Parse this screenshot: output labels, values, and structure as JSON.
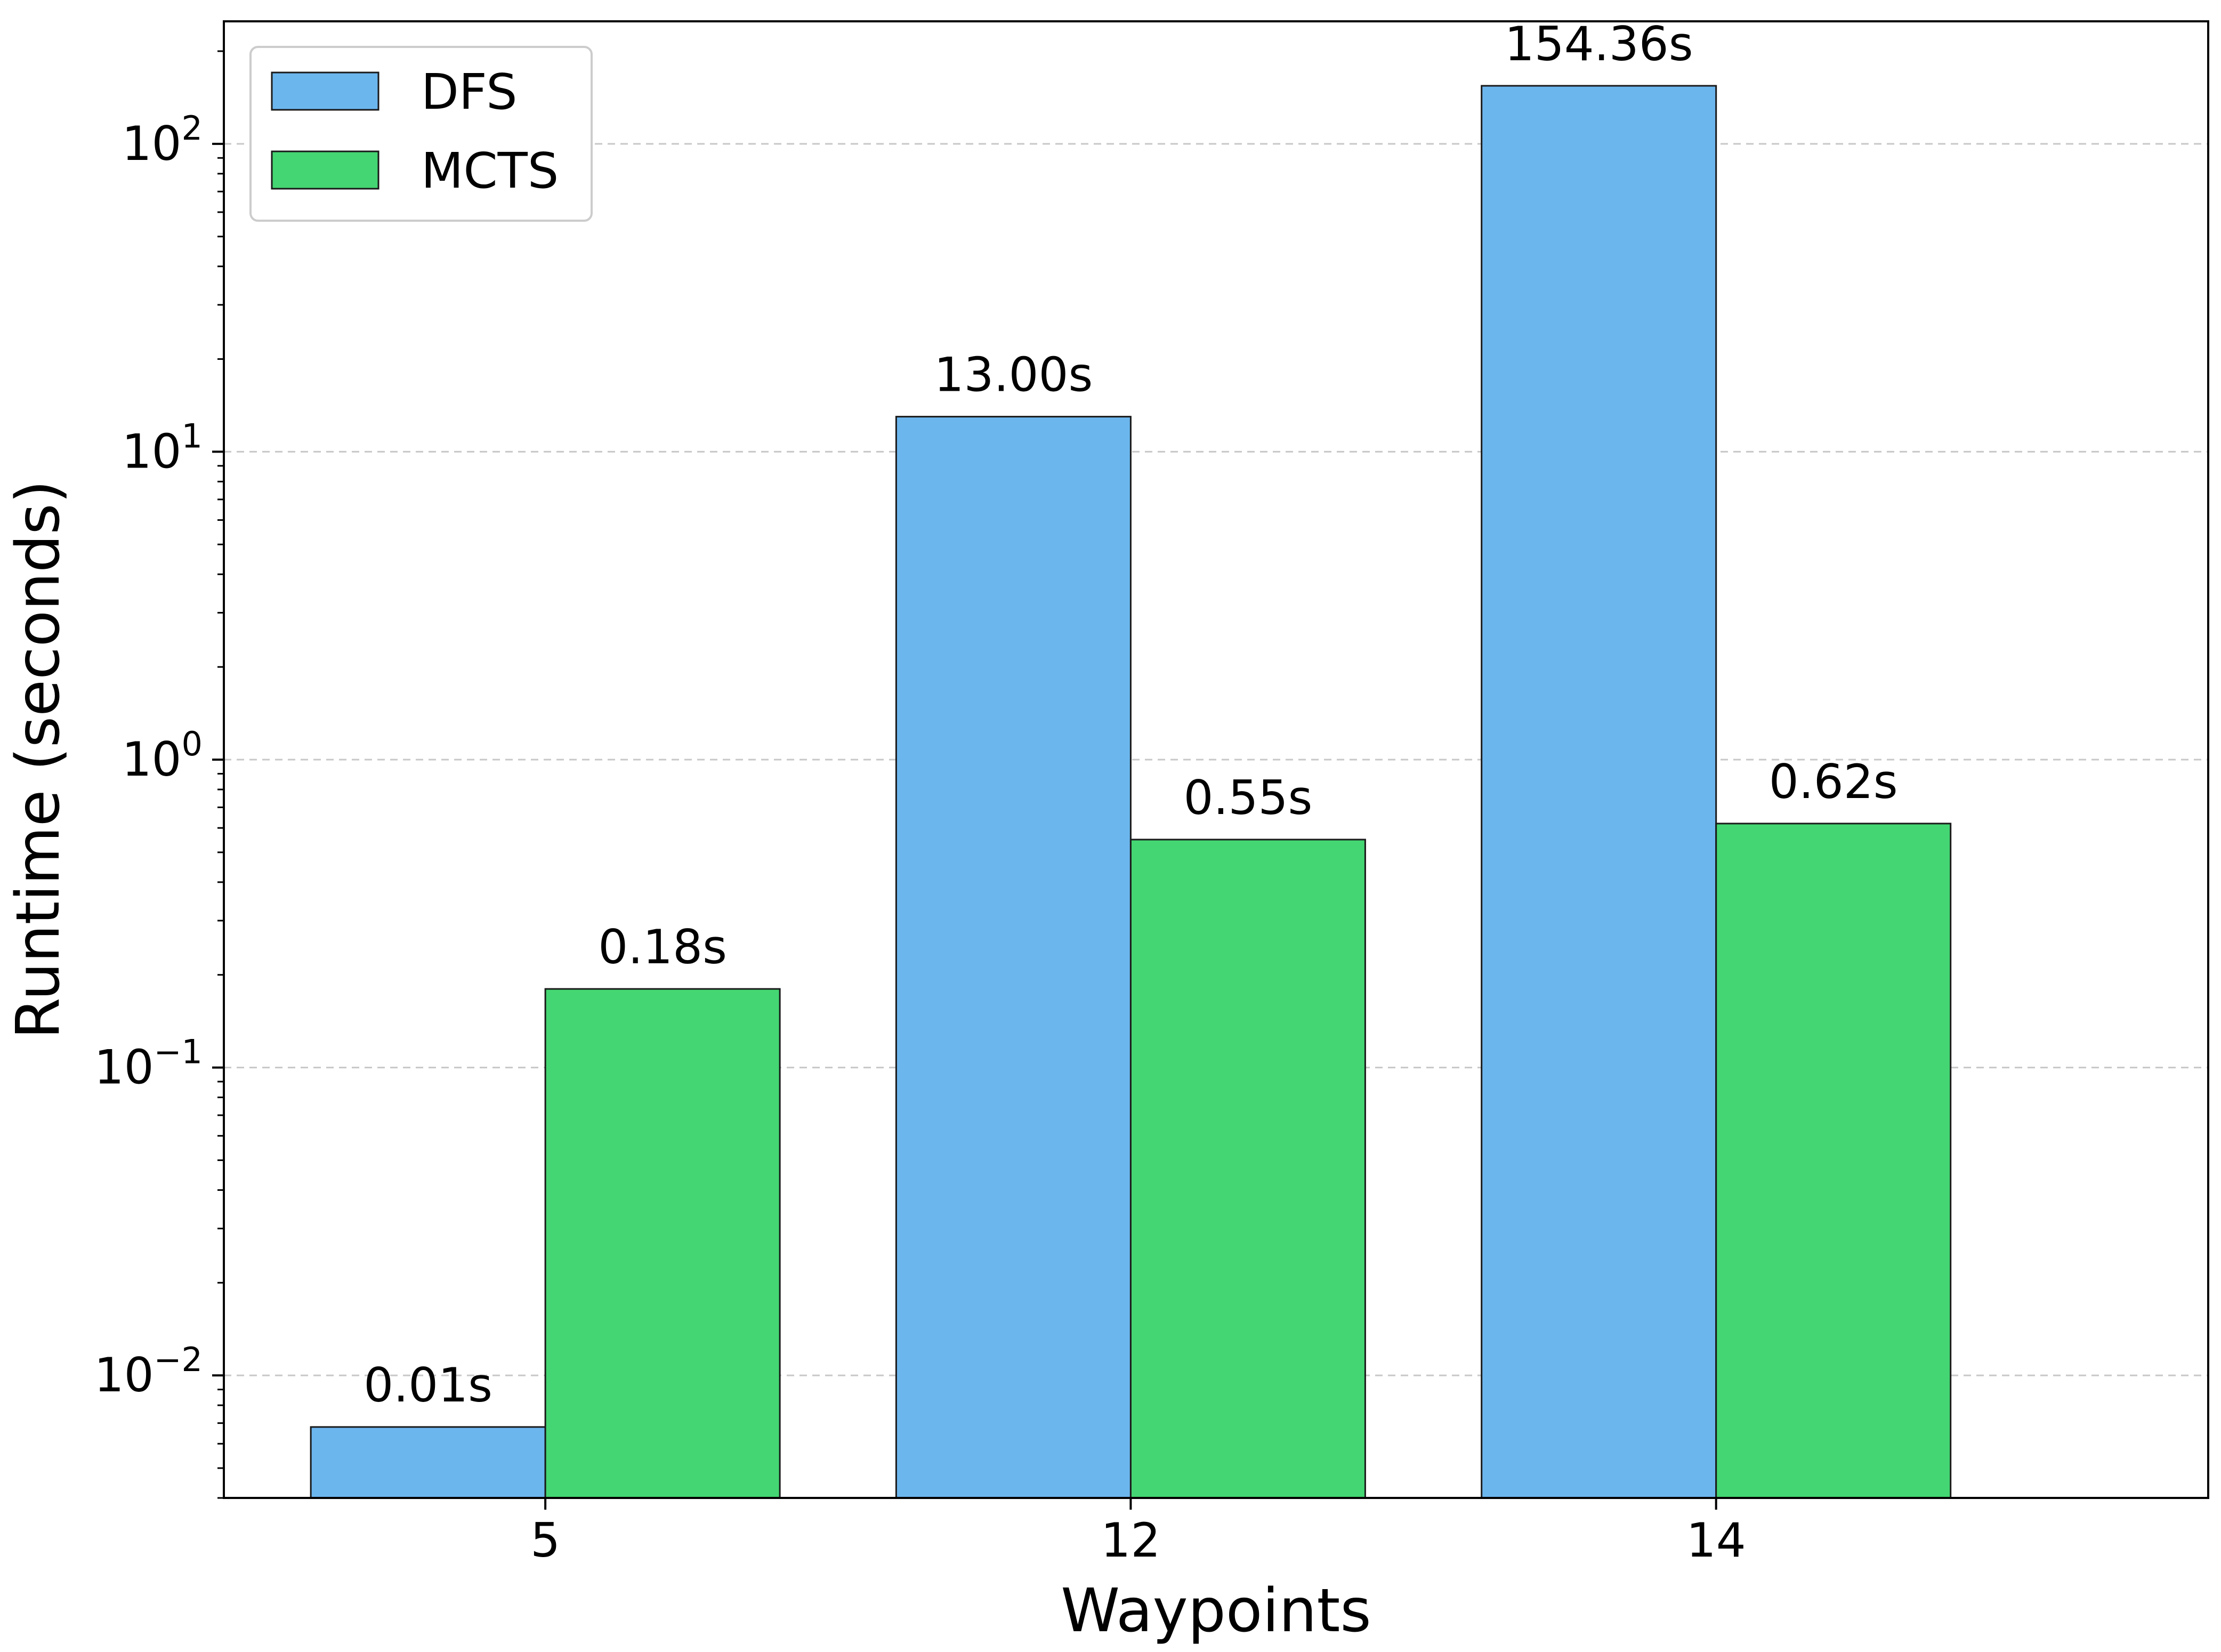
{
  "chart_data": {
    "type": "bar",
    "title": "",
    "xlabel": "Waypoints",
    "ylabel": "Runtime (seconds)",
    "yscale": "log",
    "ylim": [
      0.004,
      250
    ],
    "grid": "y-major-dashed",
    "legend_position": "top-left",
    "categories": [
      "5",
      "12",
      "14"
    ],
    "y_ticks": [
      {
        "value": 0.01,
        "base": "10",
        "exp": "−2"
      },
      {
        "value": 0.1,
        "base": "10",
        "exp": "−1"
      },
      {
        "value": 1,
        "base": "10",
        "exp": "0"
      },
      {
        "value": 10,
        "base": "10",
        "exp": "1"
      },
      {
        "value": 100,
        "base": "10",
        "exp": "2"
      }
    ],
    "series": [
      {
        "name": "DFS",
        "color": "#6cb6ee",
        "values": [
          0.0068,
          13.0,
          154.36
        ],
        "labels": [
          "0.01s",
          "13.00s",
          "154.36s"
        ]
      },
      {
        "name": "MCTS",
        "color": "#44d672",
        "values": [
          0.18,
          0.55,
          0.62
        ],
        "labels": [
          "0.18s",
          "0.55s",
          "0.62s"
        ]
      }
    ]
  }
}
